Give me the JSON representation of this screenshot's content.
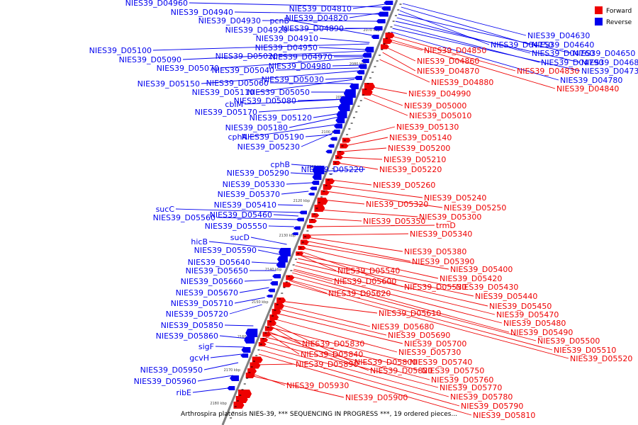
{
  "caption": "Arthrospira platensis NIES-39, *** SEQUENCING IN PROGRESS ***, 19 ordered pieces...",
  "legend": [
    {
      "label": "Forward",
      "color": "#ee0000"
    },
    {
      "label": "Reverse",
      "color": "#0000ee"
    }
  ],
  "colors": {
    "forward": "#ee0000",
    "reverse": "#0000ee",
    "backbone": "#808080"
  },
  "ticks": [
    "2070 kbp",
    "2080 kbp",
    "2090 kbp",
    "2100 kbp",
    "2110 kbp",
    "2120 kbp",
    "2130 kbp",
    "2140 kbp",
    "2150 kbp",
    "2160 kbp",
    "2170 kbp",
    "2180 kbp"
  ],
  "reverse_labels": [
    "NIES39_D04960",
    "NIES39_D04940",
    "NIES39_D04930",
    "NIES39_D04920",
    "NIES39_D05100",
    "NIES39_D05090",
    "NIES39_D05070",
    "NIES39_D05150",
    "NIES39_D05110",
    "cbiM",
    "NIES39_D05170",
    "NIES39_D05180",
    "cphA",
    "NIES39_D05230",
    "NIES39_D05290",
    "NIES39_D05330",
    "NIES39_D05370",
    "sucC",
    "NIES39_D05560",
    "NIES39_D05410",
    "NIES39_D05460",
    "NIES39_D05550",
    "hicB",
    "NIES39_D05590",
    "NIES39_D05640",
    "NIES39_D05650",
    "NIES39_D05660",
    "NIES39_D05670",
    "NIES39_D05710",
    "NIES39_D05720",
    "NIES39_D05850",
    "NIES39_D05860",
    "sigF",
    "gcvH",
    "NIES39_D05950",
    "NIES39_D05960",
    "ribE",
    "NIES39_D04810",
    "NIES39_D04820",
    "pcnB",
    "NIES39_D04890",
    "NIES39_D04910",
    "NIES39_D04950",
    "NIES39_D05020",
    "NIES39_D04970",
    "NIES39_D05040",
    "NIES39_D04980",
    "NIES39_D05030",
    "NIES39_D05060",
    "NIES39_D05050",
    "NIES39_D05080",
    "NIES39_D05120",
    "NIES39_D05190",
    "cphB",
    "NIES39_D05220",
    "sucD",
    "NIES39_D04630",
    "NIES39_D04640",
    "NIES39_D04750",
    "NIES39_D04650",
    "NIES39_D04760",
    "NIES39_D04680",
    "NIES39_D04790",
    "NIES39_D04730",
    "NIES39_D04780"
  ],
  "forward_labels": [
    "NIES39_D04850",
    "NIES39_D04860",
    "NIES39_D04870",
    "NIES39_D04880",
    "NIES39_D04990",
    "NIES39_D05000",
    "NIES39_D05010",
    "NIES39_D05130",
    "NIES39_D05140",
    "NIES39_D05200",
    "NIES39_D05210",
    "NIES39_D05220",
    "NIES39_D05260",
    "NIES39_D05240",
    "NIES39_D05250",
    "NIES39_D05320",
    "NIES39_D05300",
    "NIES39_D05350",
    "trmD",
    "NIES39_D05340",
    "NIES39_D05380",
    "NIES39_D05390",
    "NIES39_D05400",
    "NIES39_D05540",
    "NIES39_D05420",
    "NIES39_D05600",
    "NIES39_D05530",
    "NIES39_D05430",
    "NIES39_D05620",
    "NIES39_D05440",
    "NIES39_D05450",
    "NIES39_D05610",
    "NIES39_D05470",
    "NIES39_D05480",
    "NIES39_D05680",
    "NIES39_D05690",
    "NIES39_D05490",
    "NIES39_D05700",
    "NIES39_D05830",
    "NIES39_D05500",
    "NIES39_D05730",
    "NIES39_D05510",
    "NIES39_D05840",
    "NIES39_D05520",
    "NIES39_D05800",
    "NIES39_D05740",
    "NIES39_D05890",
    "NIES39_D05820",
    "NIES39_D05750",
    "NIES39_D05760",
    "NIES39_D05930",
    "NIES39_D05770",
    "NIES39_D05900",
    "NIES39_D05780",
    "NIES39_D05790",
    "NIES39_D05810",
    "NIES39_D04830",
    "NIES39_D04840"
  ]
}
